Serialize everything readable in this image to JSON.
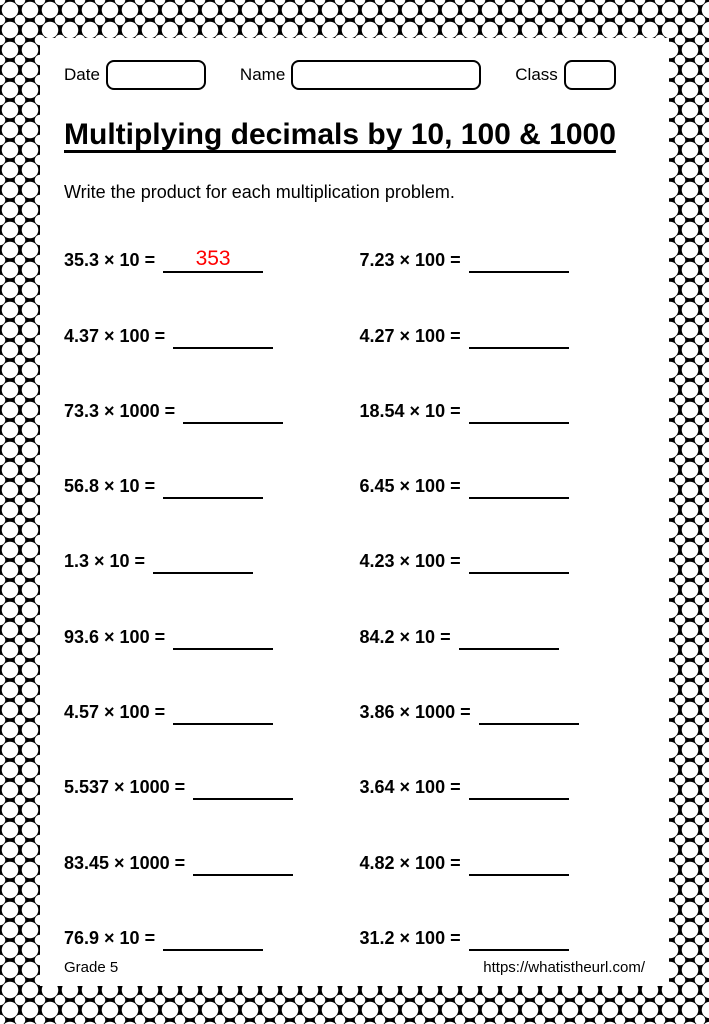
{
  "header": {
    "date_label": "Date",
    "name_label": "Name",
    "class_label": "Class"
  },
  "title": "Multiplying decimals by 10, 100 & 1000",
  "instruction": "Write the product for each multiplication problem.",
  "problems": {
    "left": [
      {
        "expr": "35.3 × 10 =",
        "answer": "353"
      },
      {
        "expr": "4.37 × 100 =",
        "answer": ""
      },
      {
        "expr": "73.3 × 1000 =",
        "answer": ""
      },
      {
        "expr": "56.8 × 10 =",
        "answer": ""
      },
      {
        "expr": "1.3 × 10 =",
        "answer": ""
      },
      {
        "expr": "93.6 × 100 =",
        "answer": ""
      },
      {
        "expr": "4.57 × 100 =",
        "answer": ""
      },
      {
        "expr": "5.537 × 1000 =",
        "answer": ""
      },
      {
        "expr": "83.45 × 1000 =",
        "answer": ""
      },
      {
        "expr": "76.9 × 10 =",
        "answer": ""
      }
    ],
    "right": [
      {
        "expr": "7.23 × 100 =",
        "answer": ""
      },
      {
        "expr": "4.27 × 100 =",
        "answer": ""
      },
      {
        "expr": "18.54 × 10 =",
        "answer": ""
      },
      {
        "expr": "6.45 × 100 =",
        "answer": ""
      },
      {
        "expr": "4.23 × 100 =",
        "answer": ""
      },
      {
        "expr": "84.2 × 10 =",
        "answer": ""
      },
      {
        "expr": "3.86 × 1000 =",
        "answer": ""
      },
      {
        "expr": "3.64 × 100 =",
        "answer": ""
      },
      {
        "expr": "4.82 × 100 =",
        "answer": ""
      },
      {
        "expr": "31.2 × 100 =",
        "answer": ""
      }
    ]
  },
  "footer": {
    "grade": "Grade 5",
    "url": "https://whatistheurl.com/"
  },
  "style": {
    "answer_color": "#ff0000",
    "text_color": "#000000",
    "background_color": "#ffffff",
    "underline_width": 100
  }
}
